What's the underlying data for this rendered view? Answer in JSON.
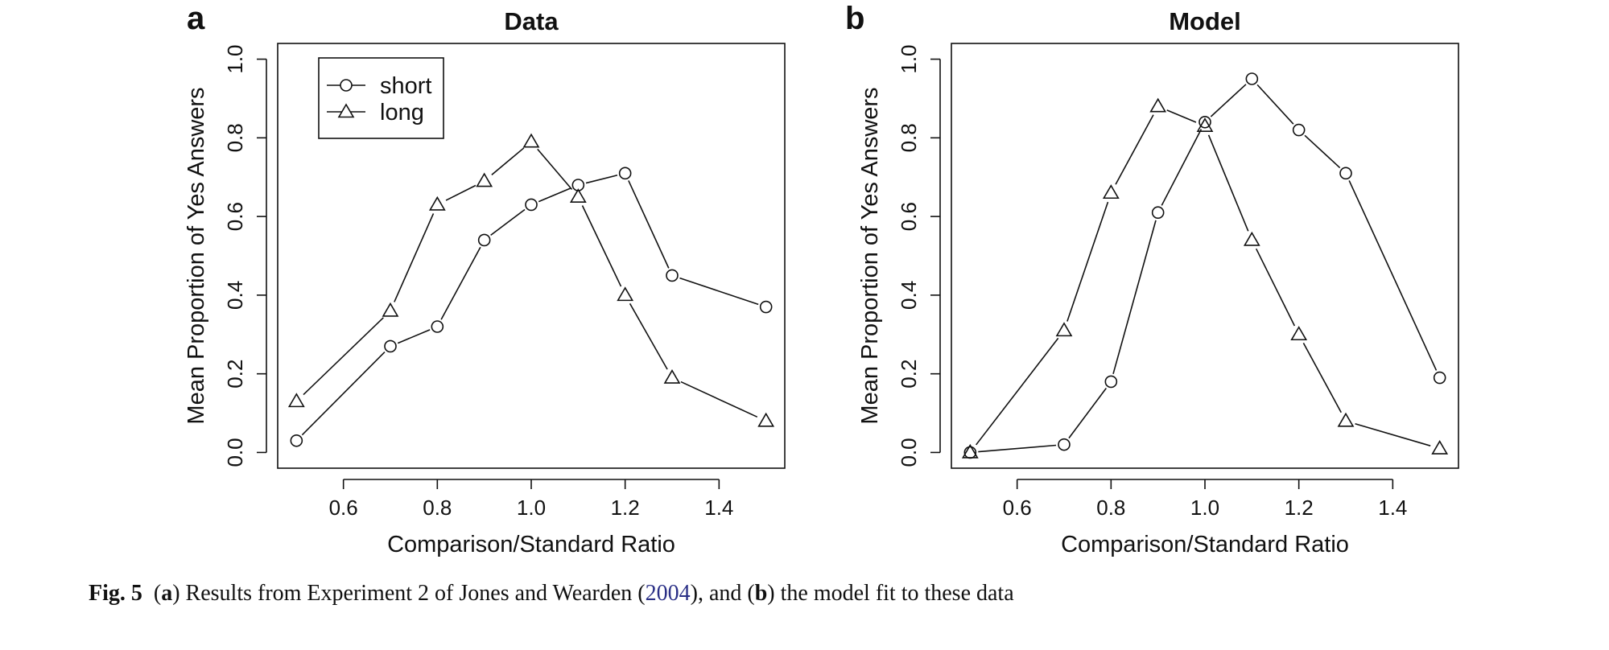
{
  "chart_data": [
    {
      "type": "line",
      "panel": "a",
      "title": "Data",
      "xlabel": "Comparison/Standard Ratio",
      "ylabel": "Mean Proportion of Yes Answers",
      "xlim": [
        0.46,
        1.54
      ],
      "ylim": [
        -0.04,
        1.04
      ],
      "xticks": [
        "0.6",
        "0.8",
        "1.0",
        "1.2",
        "1.4"
      ],
      "yticks": [
        "0.0",
        "0.2",
        "0.4",
        "0.6",
        "0.8",
        "1.0"
      ],
      "legend": {
        "position": "top-left",
        "entries": [
          "short",
          "long"
        ]
      },
      "grid": false,
      "series": [
        {
          "name": "short",
          "marker": "circle",
          "x": [
            0.5,
            0.7,
            0.8,
            0.9,
            1.0,
            1.1,
            1.2,
            1.3,
            1.5
          ],
          "y": [
            0.03,
            0.27,
            0.32,
            0.54,
            0.63,
            0.68,
            0.71,
            0.45,
            0.37
          ]
        },
        {
          "name": "long",
          "marker": "triangle",
          "x": [
            0.5,
            0.7,
            0.8,
            0.9,
            1.0,
            1.1,
            1.2,
            1.3,
            1.5
          ],
          "y": [
            0.13,
            0.36,
            0.63,
            0.69,
            0.79,
            0.65,
            0.4,
            0.19,
            0.08
          ]
        }
      ]
    },
    {
      "type": "line",
      "panel": "b",
      "title": "Model",
      "xlabel": "Comparison/Standard Ratio",
      "ylabel": "Mean Proportion of Yes Answers",
      "xlim": [
        0.46,
        1.54
      ],
      "ylim": [
        -0.04,
        1.04
      ],
      "xticks": [
        "0.6",
        "0.8",
        "1.0",
        "1.2",
        "1.4"
      ],
      "yticks": [
        "0.0",
        "0.2",
        "0.4",
        "0.6",
        "0.8",
        "1.0"
      ],
      "grid": false,
      "series": [
        {
          "name": "short",
          "marker": "circle",
          "x": [
            0.5,
            0.7,
            0.8,
            0.9,
            1.0,
            1.1,
            1.2,
            1.3,
            1.5
          ],
          "y": [
            0.0,
            0.02,
            0.18,
            0.61,
            0.84,
            0.95,
            0.82,
            0.71,
            0.19
          ]
        },
        {
          "name": "long",
          "marker": "triangle",
          "x": [
            0.5,
            0.7,
            0.8,
            0.9,
            1.0,
            1.1,
            1.2,
            1.3,
            1.5
          ],
          "y": [
            0.0,
            0.31,
            0.66,
            0.88,
            0.83,
            0.54,
            0.3,
            0.08,
            0.01
          ]
        }
      ]
    }
  ],
  "caption": {
    "label": "Fig. 5",
    "open_a": "(",
    "a": "a",
    "text_a": ") Results from Experiment 2 of Jones and Wearden (",
    "year": "2004",
    "text_mid": "), and (",
    "b": "b",
    "text_b": ") the model fit to these data"
  }
}
